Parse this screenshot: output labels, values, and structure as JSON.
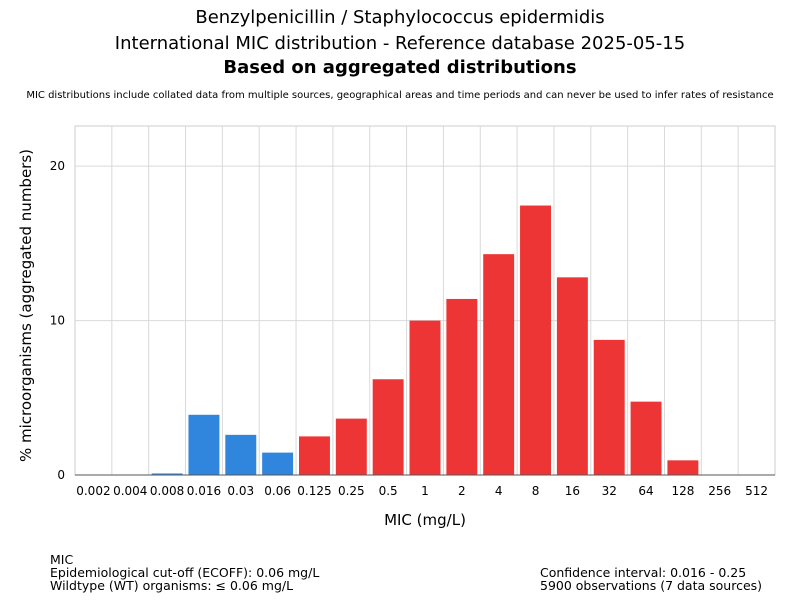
{
  "chart_data": {
    "type": "bar",
    "title": "Benzylpenicillin / Staphylococcus epidermidis",
    "subtitle": "International MIC distribution - Reference database 2025-05-15",
    "subtitle2": "Based on aggregated distributions",
    "note": "MIC distributions include collated data from multiple sources, geographical areas and time periods and can never be used to infer rates of resistance",
    "xlabel": "MIC (mg/L)",
    "ylabel": "% microorganisms (aggregated numbers)",
    "ylim": [
      0,
      22.6
    ],
    "yticks": [
      0,
      10,
      20
    ],
    "grid": true,
    "categories": [
      "0.002",
      "0.004",
      "0.008",
      "0.016",
      "0.03",
      "0.06",
      "0.125",
      "0.25",
      "0.5",
      "1",
      "2",
      "4",
      "8",
      "16",
      "32",
      "64",
      "128",
      "256",
      "512"
    ],
    "values": [
      0,
      0,
      0.1,
      3.9,
      2.6,
      1.45,
      2.5,
      3.65,
      6.2,
      10.0,
      11.4,
      14.3,
      17.45,
      12.8,
      8.75,
      4.75,
      0.95,
      0,
      0
    ],
    "colors": {
      "wildtype": "#2f86dc",
      "non_wildtype": "#ee3535"
    },
    "ecoff_index": 5
  },
  "footer": {
    "left": [
      "MIC",
      "Epidemiological cut-off (ECOFF): 0.06 mg/L",
      "Wildtype (WT) organisms: ≤ 0.06 mg/L"
    ],
    "right": [
      "Confidence interval: 0.016 - 0.25",
      "5900 observations (7 data sources)"
    ]
  }
}
